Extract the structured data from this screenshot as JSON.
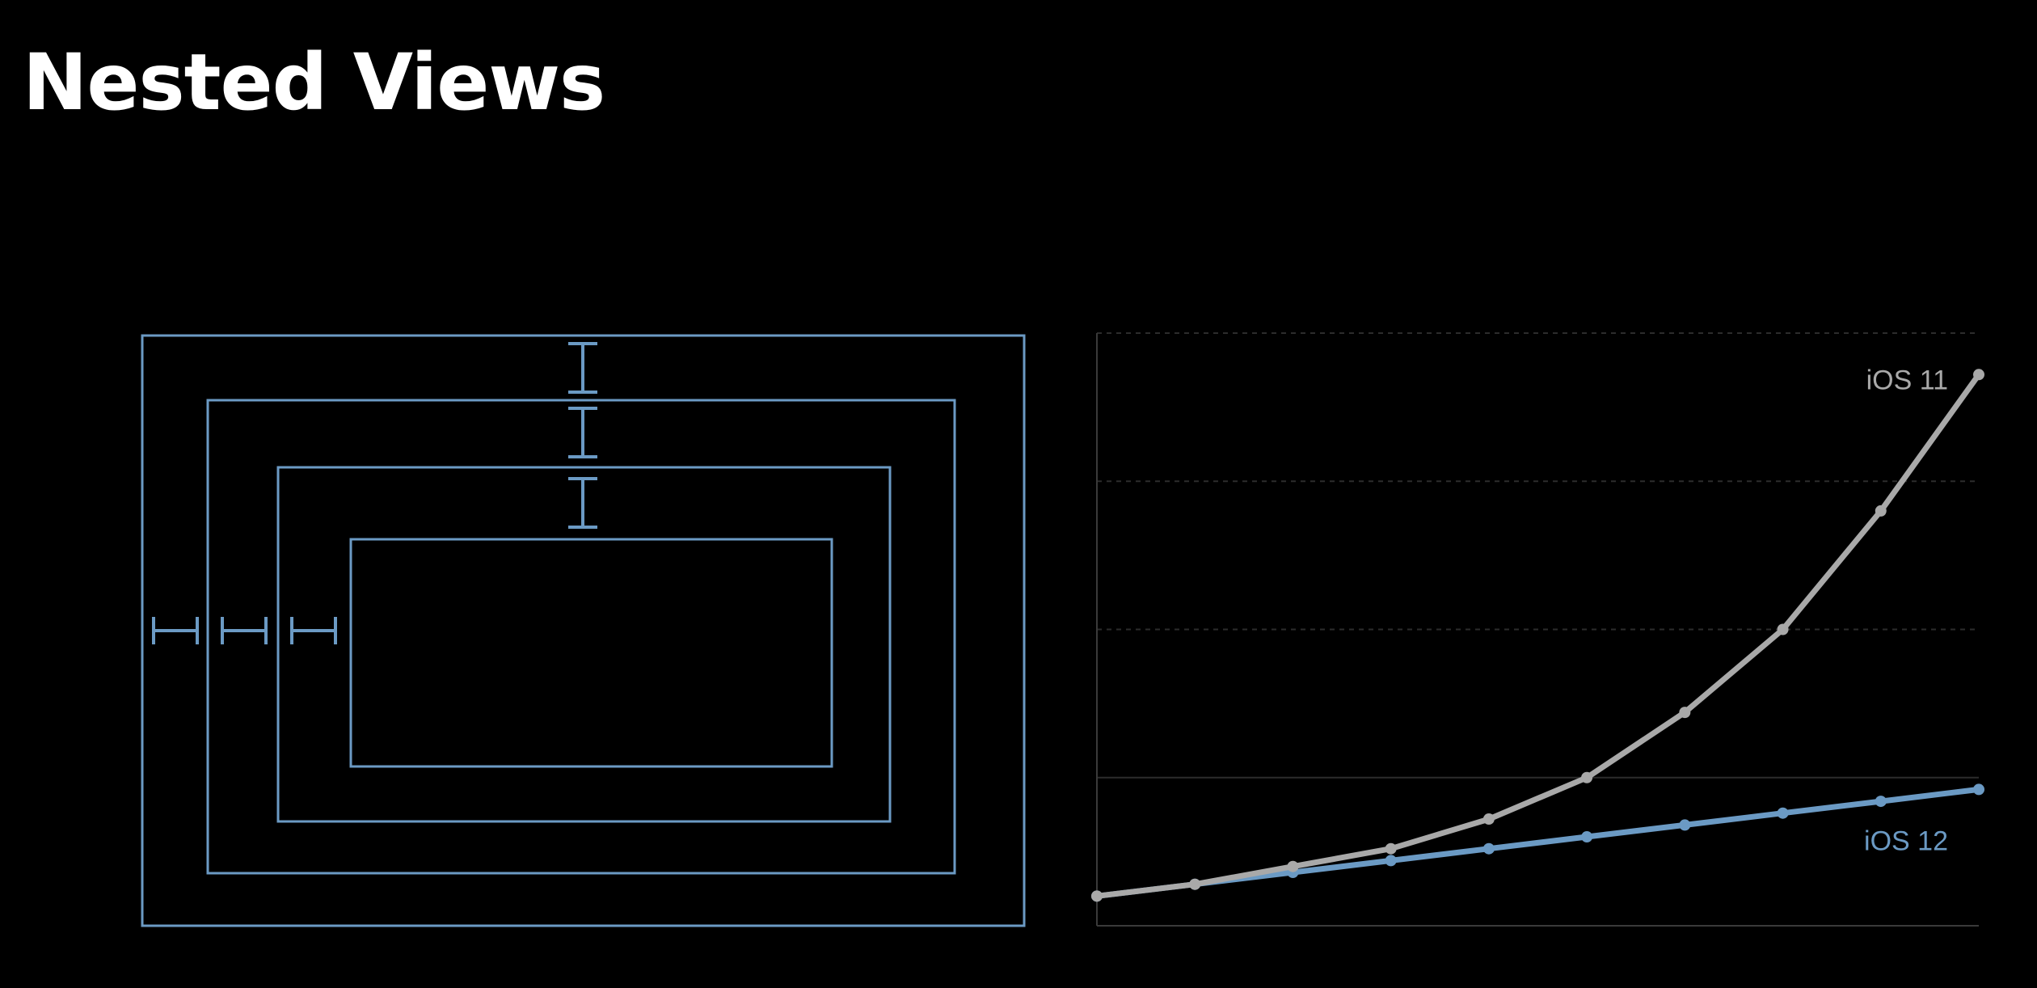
{
  "title": "Nested Views",
  "colors": {
    "background": "#000000",
    "title": "#ffffff",
    "view_outline": "#6b9ac4",
    "ios11": "#a9a9a9",
    "ios12": "#6b9ac4"
  },
  "nested_views": {
    "count": 4,
    "inset_markers": {
      "vertical": 3,
      "horizontal": 3
    }
  },
  "chart_data": {
    "type": "line",
    "title": "",
    "xlabel": "",
    "ylabel": "",
    "x": [
      1,
      2,
      3,
      4,
      5,
      6,
      7,
      8,
      9,
      10
    ],
    "xlim": [
      1,
      10
    ],
    "ylim": [
      0,
      100
    ],
    "grid": true,
    "series": [
      {
        "name": "iOS 11",
        "color": "#a9a9a9",
        "values": [
          5,
          7,
          10,
          13,
          18,
          25,
          36,
          50,
          70,
          93
        ]
      },
      {
        "name": "iOS 12",
        "color": "#6b9ac4",
        "values": [
          5,
          7,
          9,
          11,
          13,
          15,
          17,
          19,
          21,
          23
        ]
      }
    ]
  }
}
